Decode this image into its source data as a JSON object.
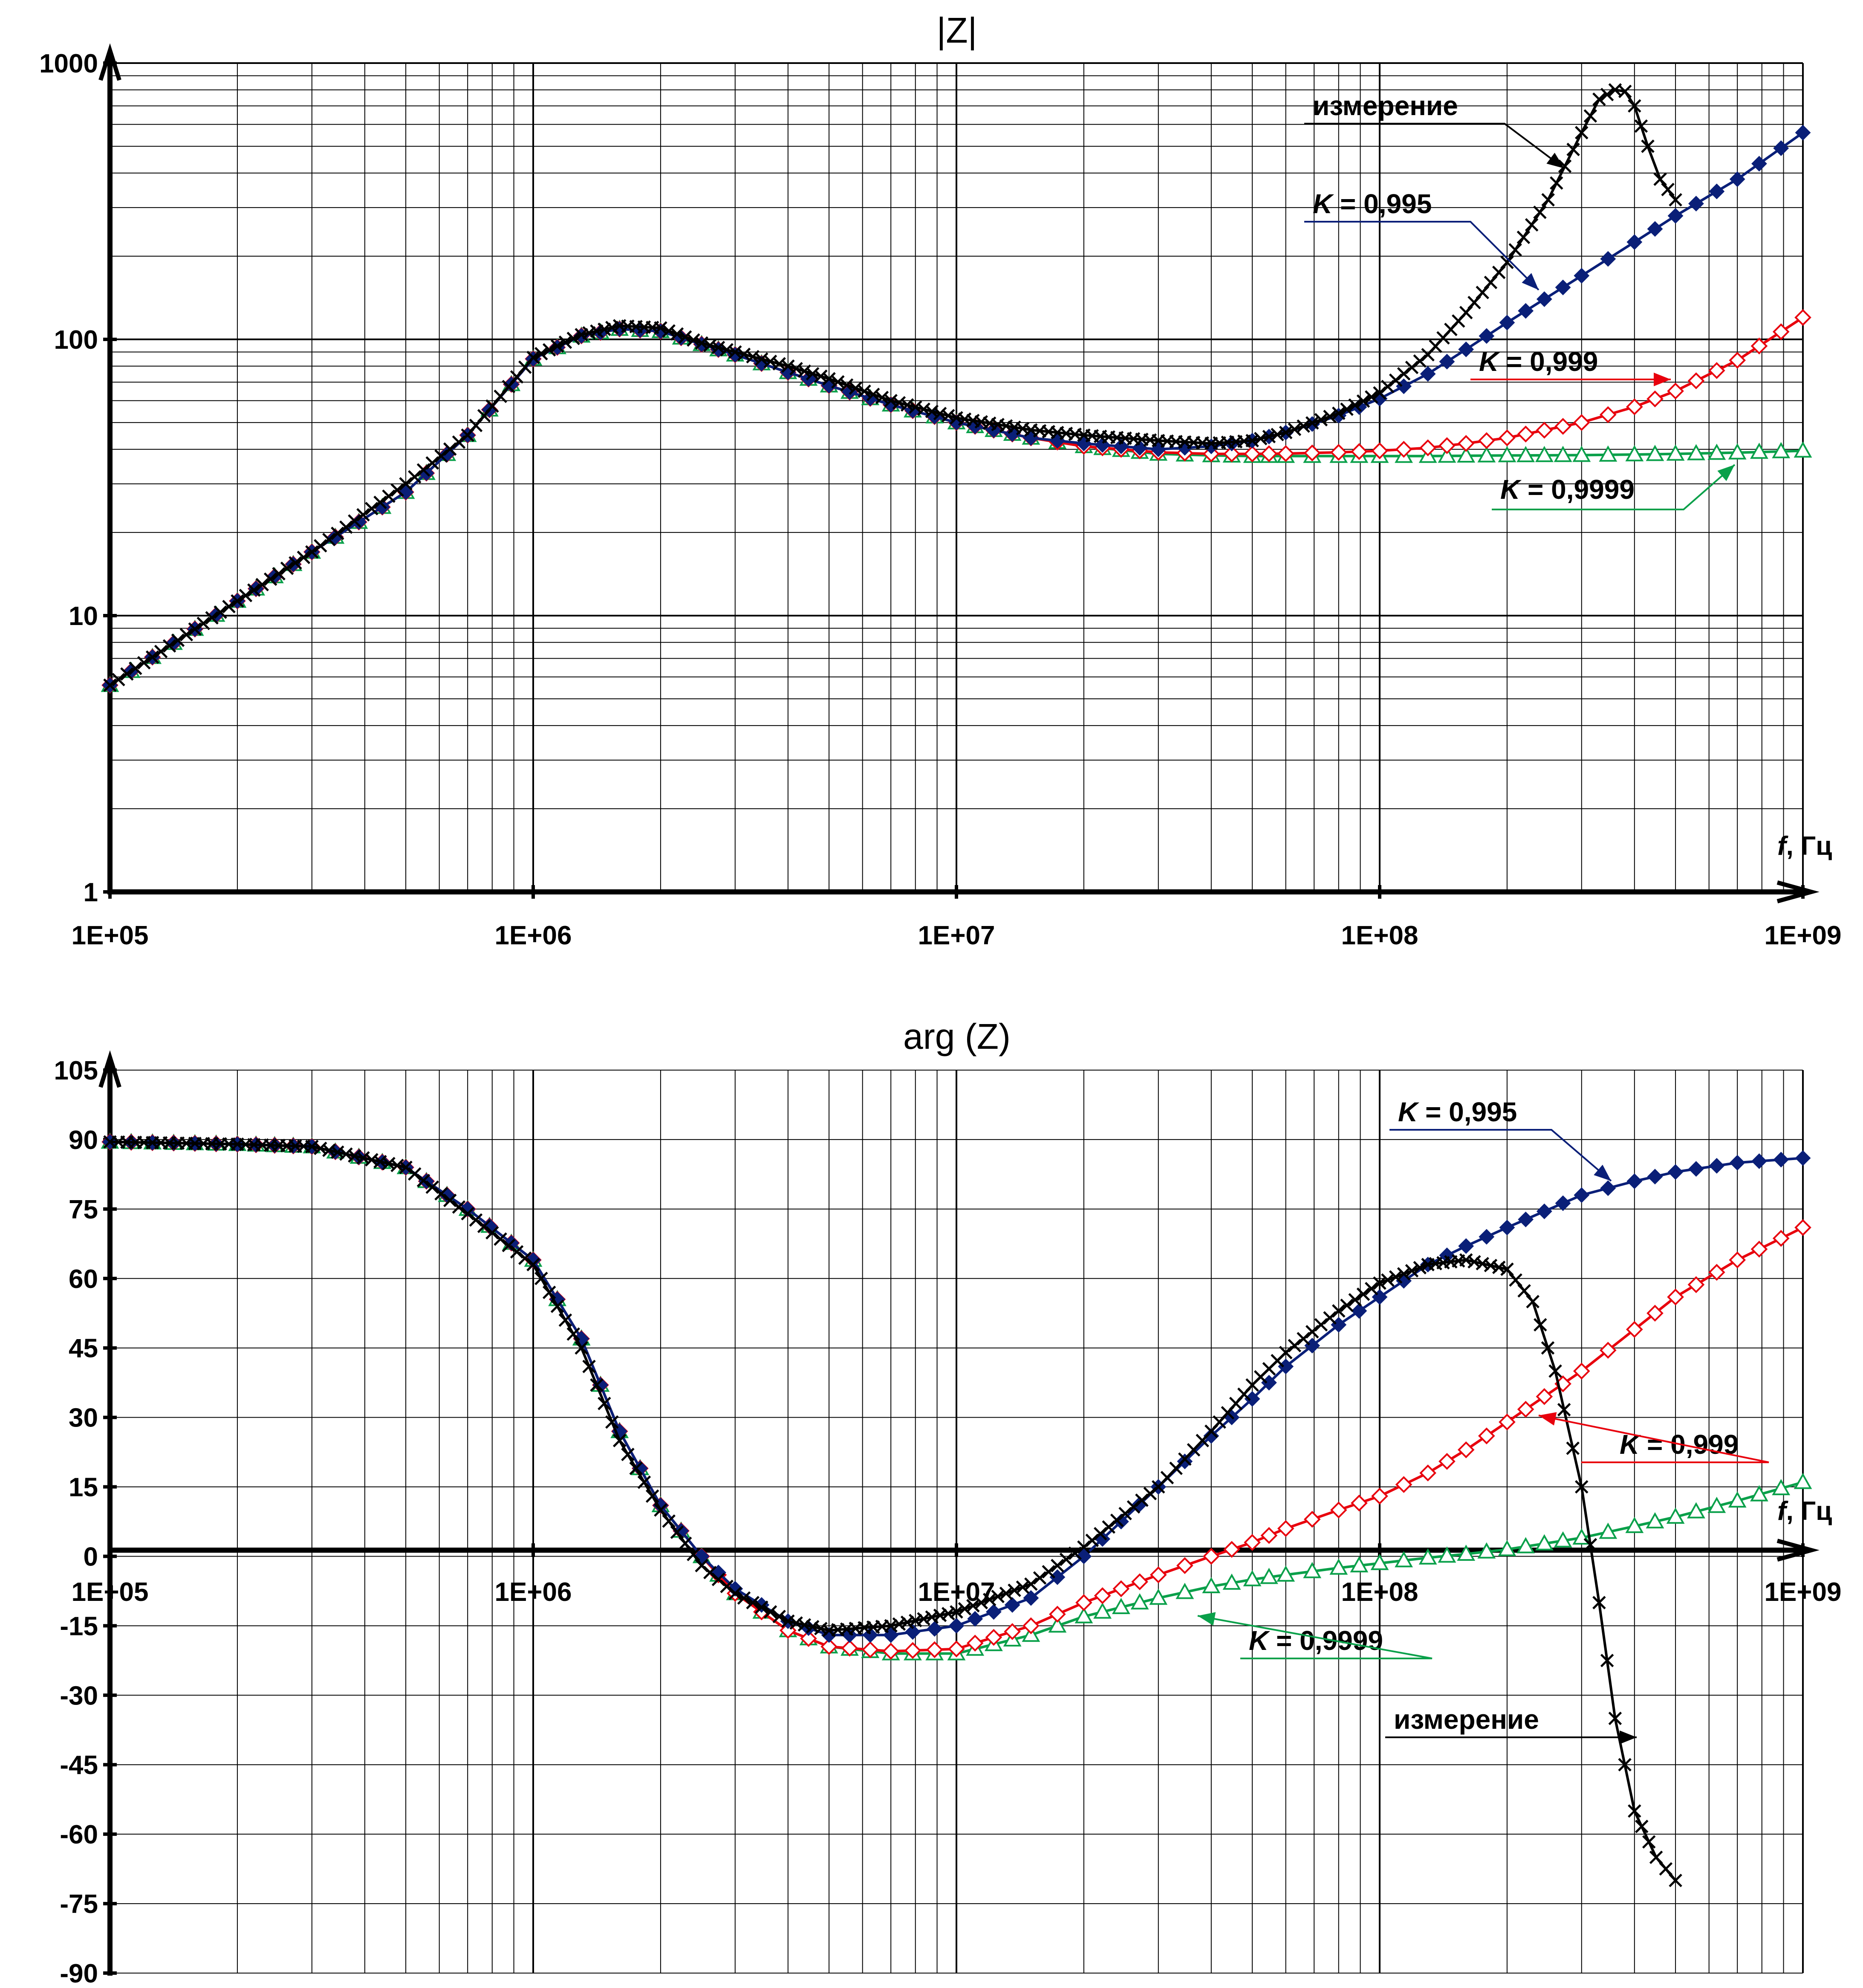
{
  "chart_data": [
    {
      "type": "line",
      "title": "|Z|",
      "xlabel": "f, Гц",
      "xlabel_italic": "f",
      "xlabel_rest": ", Гц",
      "ylabel": "",
      "xscale": "log",
      "yscale": "log",
      "xlim": [
        100000,
        1000000000
      ],
      "ylim": [
        1,
        1000
      ],
      "x_tick_labels": [
        "1E+05",
        "1E+06",
        "1E+07",
        "1E+08",
        "1E+09"
      ],
      "y_tick_labels": [
        "1",
        "10",
        "100",
        "1000"
      ],
      "grid": true,
      "series": [
        {
          "name": "измерение",
          "color": "#000000",
          "marker": "cross",
          "x": [
            100000,
            200000,
            300000,
            500000,
            700000,
            1000000,
            1300000,
            1600000,
            2000000,
            2500000,
            3000000,
            4000000,
            5000000,
            7000000,
            10000000,
            15000000,
            20000000,
            30000000,
            40000000,
            50000000,
            60000000,
            80000000,
            100000000,
            130000000,
            160000000,
            200000000,
            250000000,
            300000000,
            330000000,
            360000000,
            380000000,
            400000000,
            430000000,
            460000000,
            500000000
          ],
          "y": [
            5.6,
            11.3,
            17,
            30,
            45,
            86,
            104,
            112,
            110,
            97,
            90,
            80,
            72,
            60,
            52,
            47,
            45,
            43,
            42,
            43,
            46,
            54,
            64,
            88,
            125,
            190,
            320,
            560,
            740,
            800,
            790,
            700,
            500,
            380,
            320
          ]
        },
        {
          "name": "K = 0,995",
          "label_italic": "K",
          "label_rest": " = 0,995",
          "color": "#0a1f78",
          "marker": "diamond-filled",
          "x": [
            100000,
            200000,
            300000,
            500000,
            700000,
            1000000,
            1300000,
            1600000,
            2000000,
            2500000,
            3000000,
            4000000,
            5000000,
            7000000,
            10000000,
            15000000,
            20000000,
            30000000,
            40000000,
            50000000,
            60000000,
            80000000,
            100000000,
            130000000,
            160000000,
            200000000,
            300000000,
            400000000,
            500000000,
            700000000,
            1000000000
          ],
          "y": [
            5.6,
            11.3,
            17,
            28,
            45,
            85,
            103,
            109,
            107,
            96,
            88,
            76,
            68,
            58,
            50,
            44,
            42,
            40,
            41,
            43,
            46,
            53,
            61,
            75,
            92,
            115,
            170,
            225,
            280,
            380,
            560
          ]
        },
        {
          "name": "K = 0,999",
          "label_italic": "K",
          "label_rest": " = 0,999",
          "color": "#e8000d",
          "marker": "diamond-open",
          "x": [
            100000,
            200000,
            300000,
            500000,
            700000,
            1000000,
            1300000,
            1600000,
            2000000,
            2500000,
            3000000,
            4000000,
            5000000,
            7000000,
            10000000,
            15000000,
            20000000,
            30000000,
            40000000,
            50000000,
            60000000,
            80000000,
            100000000,
            130000000,
            160000000,
            200000000,
            300000000,
            400000000,
            500000000,
            700000000,
            1000000000
          ],
          "y": [
            5.6,
            11.3,
            17,
            28,
            45,
            85,
            103,
            109,
            107,
            96,
            88,
            76,
            68,
            58,
            50,
            44,
            41,
            39,
            38.5,
            38.5,
            38.6,
            39,
            39.5,
            40.5,
            42,
            44,
            50,
            57,
            65,
            84,
            120
          ]
        },
        {
          "name": "K = 0,9999",
          "label_italic": "K",
          "label_rest": " = 0,9999",
          "color": "#0aa04a",
          "marker": "triangle-open",
          "x": [
            100000,
            200000,
            300000,
            500000,
            700000,
            1000000,
            1300000,
            1600000,
            2000000,
            2500000,
            3000000,
            4000000,
            5000000,
            7000000,
            10000000,
            15000000,
            20000000,
            30000000,
            40000000,
            50000000,
            60000000,
            80000000,
            100000000,
            130000000,
            160000000,
            200000000,
            300000000,
            400000000,
            500000000,
            700000000,
            1000000000
          ],
          "y": [
            5.6,
            11.3,
            17,
            28,
            45,
            85,
            103,
            109,
            107,
            96,
            88,
            76,
            68,
            58,
            50,
            44,
            41,
            38.5,
            38,
            37.8,
            37.8,
            37.8,
            37.8,
            37.8,
            37.9,
            38,
            38.1,
            38.3,
            38.5,
            38.9,
            39.5
          ]
        }
      ]
    },
    {
      "type": "line",
      "title": "arg (Z)",
      "xlabel": "f, Гц",
      "xlabel_italic": "f",
      "xlabel_rest": ", Гц",
      "ylabel": "",
      "xscale": "log",
      "yscale": "linear",
      "xlim": [
        100000,
        1000000000
      ],
      "ylim": [
        -90,
        105
      ],
      "x_tick_labels": [
        "1E+05",
        "1E+06",
        "1E+07",
        "1E+08",
        "1E+09"
      ],
      "y_tick_labels": [
        "105",
        "90",
        "75",
        "60",
        "45",
        "30",
        "15",
        "0",
        "-15",
        "-30",
        "-45",
        "-60",
        "-75",
        "-90"
      ],
      "grid": true,
      "series": [
        {
          "name": "измерение",
          "color": "#000000",
          "marker": "cross",
          "x": [
            100000,
            200000,
            300000,
            500000,
            700000,
            1000000,
            1300000,
            1600000,
            2000000,
            2500000,
            3000000,
            4000000,
            5000000,
            7000000,
            10000000,
            15000000,
            20000000,
            30000000,
            40000000,
            50000000,
            60000000,
            80000000,
            100000000,
            130000000,
            160000000,
            200000000,
            230000000,
            260000000,
            300000000,
            330000000,
            360000000,
            400000000,
            450000000,
            500000000
          ],
          "y": [
            89.5,
            89,
            88.5,
            84,
            74,
            63,
            45,
            25,
            10,
            -2,
            -8,
            -14,
            -16,
            -15,
            -12,
            -6,
            2,
            15,
            27,
            37,
            44,
            53,
            59,
            63,
            64,
            62,
            55,
            40,
            15,
            -10,
            -35,
            -55,
            -65,
            -70
          ]
        },
        {
          "name": "K = 0,995",
          "label_italic": "K",
          "label_rest": " = 0,995",
          "color": "#0a1f78",
          "marker": "diamond-filled",
          "x": [
            100000,
            200000,
            300000,
            500000,
            700000,
            1000000,
            1300000,
            1600000,
            2000000,
            2500000,
            3000000,
            4000000,
            5000000,
            7000000,
            10000000,
            15000000,
            20000000,
            30000000,
            40000000,
            50000000,
            60000000,
            80000000,
            100000000,
            130000000,
            160000000,
            200000000,
            300000000,
            400000000,
            500000000,
            700000000,
            1000000000
          ],
          "y": [
            89.5,
            89,
            88.5,
            84,
            75,
            64,
            47,
            27,
            11,
            0,
            -7,
            -14,
            -17,
            -17,
            -15,
            -9,
            0,
            15,
            26,
            34,
            41,
            50,
            56,
            63,
            67,
            71,
            78,
            81,
            83,
            85,
            86
          ]
        },
        {
          "name": "K = 0,999",
          "label_italic": "K",
          "label_rest": " = 0,999",
          "color": "#e8000d",
          "marker": "diamond-open",
          "x": [
            100000,
            200000,
            300000,
            500000,
            700000,
            1000000,
            1300000,
            1600000,
            2000000,
            2500000,
            3000000,
            4000000,
            5000000,
            7000000,
            10000000,
            15000000,
            20000000,
            30000000,
            40000000,
            50000000,
            60000000,
            80000000,
            100000000,
            130000000,
            160000000,
            200000000,
            300000000,
            400000000,
            500000000,
            700000000,
            1000000000
          ],
          "y": [
            89.5,
            89,
            88.5,
            84,
            75,
            64,
            47,
            27,
            11,
            0,
            -8,
            -16,
            -19.5,
            -20.5,
            -20,
            -15,
            -10,
            -4,
            0,
            3,
            6,
            10,
            13,
            18,
            23,
            29,
            40,
            49,
            56,
            64,
            71
          ]
        },
        {
          "name": "K = 0,9999",
          "label_italic": "K",
          "label_rest": " = 0,9999",
          "color": "#0aa04a",
          "marker": "triangle-open",
          "x": [
            100000,
            200000,
            300000,
            500000,
            700000,
            1000000,
            1300000,
            1600000,
            2000000,
            2500000,
            3000000,
            4000000,
            5000000,
            7000000,
            10000000,
            15000000,
            20000000,
            30000000,
            40000000,
            50000000,
            60000000,
            80000000,
            100000000,
            130000000,
            160000000,
            200000000,
            300000000,
            400000000,
            500000000,
            700000000,
            1000000000
          ],
          "y": [
            89.5,
            89,
            88.5,
            84,
            75,
            64,
            47,
            27,
            11,
            0,
            -8,
            -16,
            -19.5,
            -21,
            -21,
            -17,
            -13,
            -9,
            -6.5,
            -5,
            -4,
            -2.5,
            -1.5,
            -0.3,
            0.5,
            1.5,
            4,
            6.5,
            8.5,
            12,
            16
          ]
        }
      ]
    }
  ]
}
